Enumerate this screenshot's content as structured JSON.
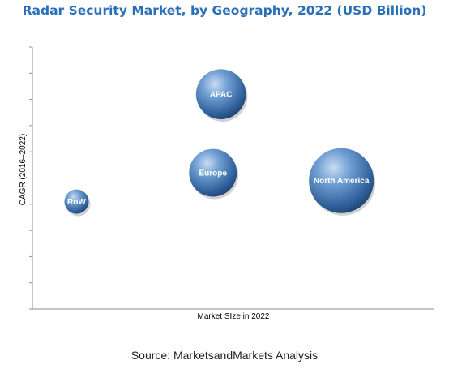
{
  "chart_data": {
    "type": "scatter",
    "title": "Radar Security Market, by Geography, 2022 (USD Billion)",
    "xlabel": "Market SIze in 2022",
    "ylabel": "CAGR (2016–2022)",
    "xlim": [
      0,
      100
    ],
    "ylim": [
      0,
      100
    ],
    "tick_labels_shown": false,
    "y_minor_ticks": 11,
    "grid": false,
    "legend": "none",
    "bubble_color": "#4a78b0",
    "points": [
      {
        "label": "APAC",
        "x": 47,
        "y": 82,
        "size": 60
      },
      {
        "label": "Europe",
        "x": 45,
        "y": 52,
        "size": 55
      },
      {
        "label": "North America",
        "x": 77,
        "y": 49,
        "size": 100
      },
      {
        "label": "RoW",
        "x": 11,
        "y": 41,
        "size": 15
      }
    ]
  },
  "footer": {
    "source": "Source: MarketsandMarkets Analysis"
  }
}
